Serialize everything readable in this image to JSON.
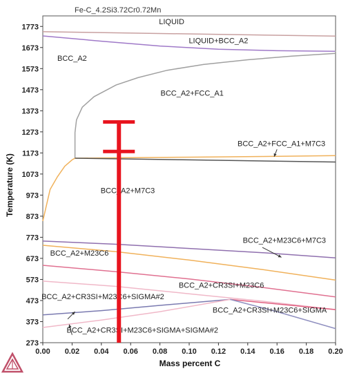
{
  "chart_data": {
    "type": "line",
    "title": "Fe-C_4.2Si3.72Cr0.72Mn",
    "xlabel": "Mass percent C",
    "ylabel": "Temperature (K)",
    "xlim": [
      0,
      0.2
    ],
    "ylim": [
      273,
      1823
    ],
    "grid": false,
    "x_ticks": [
      "0.00",
      "0.02",
      "0.04",
      "0.06",
      "0.08",
      "0.10",
      "0.12",
      "0.14",
      "0.16",
      "0.18",
      "0.20"
    ],
    "y_ticks": [
      "273",
      "373",
      "473",
      "573",
      "673",
      "773",
      "873",
      "973",
      "1073",
      "1173",
      "1273",
      "1373",
      "1473",
      "1573",
      "1673",
      "1773"
    ],
    "phase_labels": [
      {
        "text": "LIQUID",
        "x": 0.088,
        "y": 1783
      },
      {
        "text": "LIQUID+BCC_A2",
        "x": 0.12,
        "y": 1693
      },
      {
        "text": "BCC_A2",
        "x": 0.02,
        "y": 1610
      },
      {
        "text": "BCC_A2+FCC_A1",
        "x": 0.102,
        "y": 1445
      },
      {
        "text": "BCC_A2+FCC_A1+M7C3",
        "x": 0.163,
        "y": 1205
      },
      {
        "text": "BCC_A2+M7C3",
        "x": 0.058,
        "y": 983
      },
      {
        "text": "BCC_A2+M23C6+M7C3",
        "x": 0.165,
        "y": 747
      },
      {
        "text": "BCC_A2+M23C6",
        "x": 0.025,
        "y": 686
      },
      {
        "text": "BCC_A2+CR3SI+M23C6",
        "x": 0.122,
        "y": 533
      },
      {
        "text": "BCC_A2+CR3SI+M23C6+SIGMA#2",
        "x": 0.041,
        "y": 480
      },
      {
        "text": "BCC_A2+CR3SI+M23C6+SIGMA",
        "x": 0.155,
        "y": 415
      },
      {
        "text": "BCC_A2+CR3SI+M23C6+SIGMA+SIGMA#2",
        "x": 0.068,
        "y": 320
      }
    ],
    "series": [
      {
        "color": "#c8a0a0",
        "x": [
          0,
          0.2
        ],
        "y": [
          1748,
          1727
        ]
      },
      {
        "color": "#9f79c8",
        "x": [
          0,
          0.04,
          0.08,
          0.12,
          0.16,
          0.2
        ],
        "y": [
          1728,
          1703,
          1680,
          1665,
          1658,
          1655
        ]
      },
      {
        "color": "#a8a8a8",
        "x": [
          0.2,
          0.2
        ],
        "y": [
          1658,
          1652
        ]
      },
      {
        "color": "#a0a0a0",
        "x": [
          0.022,
          0.022,
          0.023,
          0.027,
          0.035,
          0.05,
          0.065,
          0.085,
          0.11,
          0.14,
          0.17,
          0.2
        ],
        "y": [
          1148,
          1270,
          1330,
          1390,
          1440,
          1495,
          1530,
          1565,
          1593,
          1615,
          1632,
          1645
        ]
      },
      {
        "color": "#f0b15a",
        "x": [
          0,
          0.005,
          0.01,
          0.015,
          0.02,
          0.022,
          0.05,
          0.1,
          0.15,
          0.2
        ],
        "y": [
          850,
          1000,
          1060,
          1110,
          1140,
          1148,
          1150,
          1153,
          1156,
          1160
        ]
      },
      {
        "color": "#555555",
        "x": [
          0.022,
          0.1,
          0.2
        ],
        "y": [
          1148,
          1140,
          1130
        ]
      },
      {
        "color": "#8f6fae",
        "x": [
          0,
          0.05,
          0.1,
          0.15,
          0.2
        ],
        "y": [
          755,
          740,
          720,
          700,
          675
        ]
      },
      {
        "color": "#f0b15a",
        "x": [
          0,
          0.05,
          0.1,
          0.15,
          0.2
        ],
        "y": [
          735,
          705,
          665,
          620,
          570
        ]
      },
      {
        "color": "#e07090",
        "x": [
          0,
          0.05,
          0.1,
          0.15,
          0.2
        ],
        "y": [
          640,
          610,
          575,
          535,
          490
        ]
      },
      {
        "color": "#f0b8c8",
        "x": [
          0,
          0.05,
          0.1,
          0.15,
          0.2
        ],
        "y": [
          565,
          540,
          505,
          470,
          430
        ]
      },
      {
        "color": "#7a7ab0",
        "x": [
          0,
          0.04,
          0.08,
          0.128
        ],
        "y": [
          405,
          425,
          450,
          478
        ]
      },
      {
        "color": "#e06080",
        "x": [
          0.128,
          0.17,
          0.2
        ],
        "y": [
          478,
          450,
          430
        ]
      },
      {
        "color": "#f0b8c8",
        "x": [
          0,
          0.04,
          0.08,
          0.128
        ],
        "y": [
          345,
          380,
          420,
          478
        ]
      },
      {
        "color": "#9090c0",
        "x": [
          0.128,
          0.16,
          0.2
        ],
        "y": [
          478,
          420,
          340
        ]
      }
    ],
    "overlay": {
      "color": "#e8141e",
      "x": 0.052,
      "y_bottom": 273,
      "y_top": 1320,
      "y_mid_bar": 1180
    }
  }
}
